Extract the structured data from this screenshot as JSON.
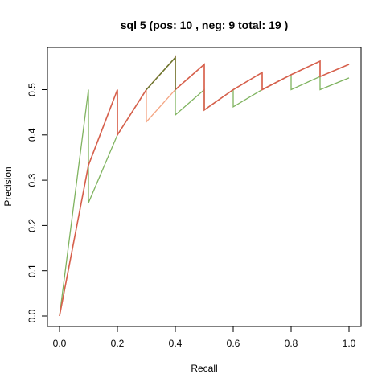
{
  "chart_data": {
    "type": "line",
    "title": "sql 5 (pos:  10 , neg:  9 total:  19 )",
    "xlabel": "Recall",
    "ylabel": "Precision",
    "xlim": [
      0,
      1
    ],
    "ylim": [
      0,
      0.57
    ],
    "x_ticks": [
      "0.0",
      "0.2",
      "0.4",
      "0.6",
      "0.8",
      "1.0"
    ],
    "y_ticks": [
      "0.0",
      "0.1",
      "0.2",
      "0.3",
      "0.4",
      "0.5"
    ],
    "grid": false,
    "series": [
      {
        "name": "green",
        "color": "#7fb35f",
        "x": [
          0,
          0.1,
          0.1,
          0.2,
          0.3,
          0.4,
          0.4,
          0.5,
          0.5,
          0.6,
          0.6,
          0.7,
          0.8,
          0.8,
          0.9,
          0.9,
          1.0
        ],
        "y": [
          0,
          0.5,
          0.25,
          0.4,
          0.5,
          0.571,
          0.444,
          0.5,
          0.455,
          0.5,
          0.462,
          0.5,
          0.533,
          0.5,
          0.529,
          0.5,
          0.526
        ]
      },
      {
        "name": "salmon",
        "color": "#f4a582",
        "x": [
          0,
          0.1,
          0.2,
          0.2,
          0.3,
          0.3,
          0.4,
          0.4,
          0.5,
          0.5,
          0.6,
          0.7,
          0.7,
          0.8,
          0.9,
          0.9,
          1.0
        ],
        "y": [
          0,
          0.333,
          0.5,
          0.4,
          0.5,
          0.429,
          0.5,
          0.5,
          0.556,
          0.455,
          0.5,
          0.538,
          0.5,
          0.533,
          0.563,
          0.529,
          0.556
        ]
      },
      {
        "name": "dark-orange",
        "color": "#d6604d",
        "x": [
          0,
          0.1,
          0.2,
          0.2,
          0.3,
          0.4,
          0.4,
          0.5,
          0.5,
          0.6,
          0.7,
          0.7,
          0.8,
          0.9,
          0.9,
          1.0
        ],
        "y": [
          0,
          0.333,
          0.5,
          0.4,
          0.5,
          0.571,
          0.5,
          0.556,
          0.455,
          0.5,
          0.538,
          0.5,
          0.533,
          0.563,
          0.529,
          0.556
        ]
      },
      {
        "name": "dark-olive",
        "color": "#5d7f2f",
        "x": [
          0.3,
          0.4,
          0.4
        ],
        "y": [
          0.5,
          0.571,
          0.5
        ]
      }
    ]
  }
}
